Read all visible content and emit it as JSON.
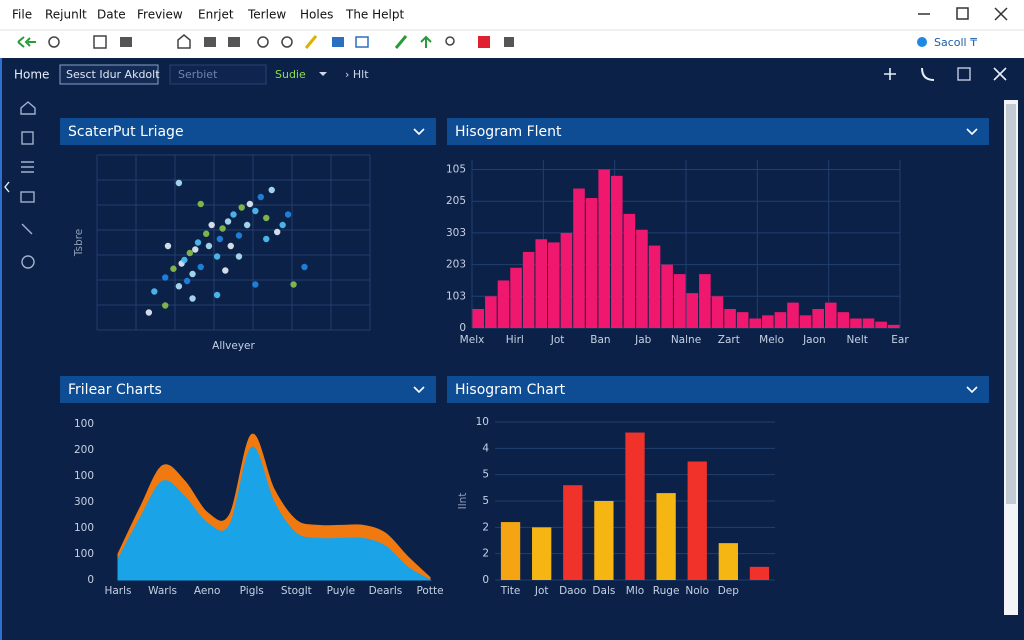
{
  "menu": [
    "File",
    "Rejunlt",
    "Date",
    "Freview",
    "Enrjet",
    "Terlew",
    "Holes",
    "The Helpt"
  ],
  "toolbar": {
    "search": "Sacoll ₸"
  },
  "tabs": {
    "home": "Home",
    "selector": "Sesct Idur Akdolt",
    "search": "Serbiet",
    "mode": "Sudie",
    "crumb": "› Hlt"
  },
  "chart_data": [
    {
      "type": "scatter",
      "title": "ScaterPut Lriage",
      "xlabel": "Allveyer",
      "ylabel": "Tsbre",
      "xlim": [
        0,
        100
      ],
      "ylim": [
        0,
        100
      ],
      "grid": true,
      "colors": [
        "#e8f0f8",
        "#4fc3f7",
        "#1e88e5",
        "#8bc34a",
        "#b3e5fc"
      ],
      "series": [
        {
          "name": "points",
          "x": [
            19,
            21,
            25,
            28,
            30,
            31,
            32,
            33,
            34,
            35,
            36,
            37,
            38,
            40,
            41,
            42,
            44,
            45,
            46,
            48,
            49,
            50,
            52,
            53,
            55,
            56,
            58,
            60,
            62,
            64,
            66,
            68,
            70,
            72,
            30,
            26,
            44,
            58,
            38,
            52,
            47,
            62,
            76,
            25,
            35
          ],
          "values": [
            10,
            22,
            30,
            35,
            25,
            38,
            40,
            28,
            44,
            32,
            46,
            50,
            36,
            55,
            48,
            60,
            42,
            52,
            58,
            62,
            48,
            66,
            54,
            70,
            60,
            72,
            68,
            76,
            64,
            80,
            56,
            60,
            66,
            26,
            84,
            48,
            20,
            26,
            72,
            42,
            34,
            52,
            36,
            14,
            18
          ]
        }
      ]
    },
    {
      "type": "bar",
      "title": "Hisogram Flent",
      "color": "#f0186e",
      "values": [
        0.6,
        1.0,
        1.5,
        1.9,
        2.4,
        2.8,
        2.7,
        3.0,
        4.4,
        4.1,
        5.0,
        4.8,
        3.6,
        3.1,
        2.6,
        2.0,
        1.7,
        1.1,
        1.7,
        1.0,
        0.6,
        0.5,
        0.3,
        0.4,
        0.5,
        0.8,
        0.4,
        0.6,
        0.8,
        0.5,
        0.3,
        0.3,
        0.2,
        0.1
      ],
      "xlabels": [
        "Melx",
        "Hirl",
        "Jot",
        "Ban",
        "Jab",
        "Nalne",
        "Zart",
        "Melo",
        "Jaon",
        "Nelt",
        "Ear"
      ],
      "ylim": [
        0,
        5.3
      ],
      "yticks": [
        0,
        {
          "value": 1,
          "label": "103"
        },
        {
          "value": 2,
          "label": "203"
        },
        {
          "value": 3,
          "label": "303"
        },
        {
          "value": 4,
          "label": "205"
        },
        {
          "value": 5,
          "label": "105"
        }
      ],
      "grid": true
    },
    {
      "type": "area",
      "title": "Frilear Charts",
      "x": [
        0,
        1,
        2,
        3,
        4,
        5,
        6,
        7,
        8,
        9,
        10,
        11,
        12,
        13,
        14
      ],
      "xlim": [
        0,
        14
      ],
      "xticks": [
        {
          "value": 0,
          "label": "Harls"
        },
        {
          "value": 2,
          "label": "Warls"
        },
        {
          "value": 4,
          "label": "Aeno"
        },
        {
          "value": 6,
          "label": "Pigls"
        },
        {
          "value": 8,
          "label": "Stoglt"
        },
        {
          "value": 10,
          "label": "Puyle"
        },
        {
          "value": 12,
          "label": "Dearls"
        },
        {
          "value": 14,
          "label": "Potte"
        }
      ],
      "ylim": [
        0,
        6
      ],
      "yticks": [
        0,
        {
          "value": 1,
          "label": "100"
        },
        {
          "value": 2,
          "label": "100"
        },
        {
          "value": 3,
          "label": "300"
        },
        {
          "value": 4,
          "label": "100"
        },
        {
          "value": 5,
          "label": "200"
        },
        {
          "value": 6,
          "label": "100"
        }
      ],
      "series": [
        {
          "name": "orange",
          "color": "#f07a10",
          "values": [
            1.0,
            2.8,
            4.4,
            3.8,
            2.6,
            2.5,
            5.6,
            3.5,
            2.3,
            2.1,
            2.1,
            2.1,
            1.8,
            0.9,
            0.1
          ]
        },
        {
          "name": "blue",
          "color": "#1aa3e6",
          "values": [
            0.8,
            2.4,
            3.8,
            3.2,
            2.2,
            2.1,
            5.1,
            3.0,
            1.8,
            1.6,
            1.6,
            1.6,
            1.3,
            0.5,
            0.0
          ]
        }
      ]
    },
    {
      "type": "bar",
      "title": "Hisogram Chart",
      "ylabel": "Ilnt",
      "categories": [
        "Tite",
        "Jot",
        "Daoo",
        "Dals",
        "Mlo",
        "Ruge",
        "Nolo",
        "Dep",
        null
      ],
      "values": [
        2.2,
        2.0,
        3.6,
        3.0,
        5.6,
        3.3,
        4.5,
        1.4,
        0.5
      ],
      "colors": [
        "#f5a413",
        "#f5b513",
        "#f0322a",
        "#f5b513",
        "#f0322a",
        "#f5b513",
        "#f0322a",
        "#f5b513",
        "#f0322a"
      ],
      "ylim": [
        0,
        6
      ],
      "yticks": [
        0,
        {
          "value": 1,
          "label": "2"
        },
        {
          "value": 2,
          "label": "2"
        },
        {
          "value": 3,
          "label": "5"
        },
        {
          "value": 4,
          "label": "5"
        },
        {
          "value": 5,
          "label": "4"
        },
        {
          "value": 6,
          "label": "10"
        }
      ],
      "grid": true
    }
  ]
}
